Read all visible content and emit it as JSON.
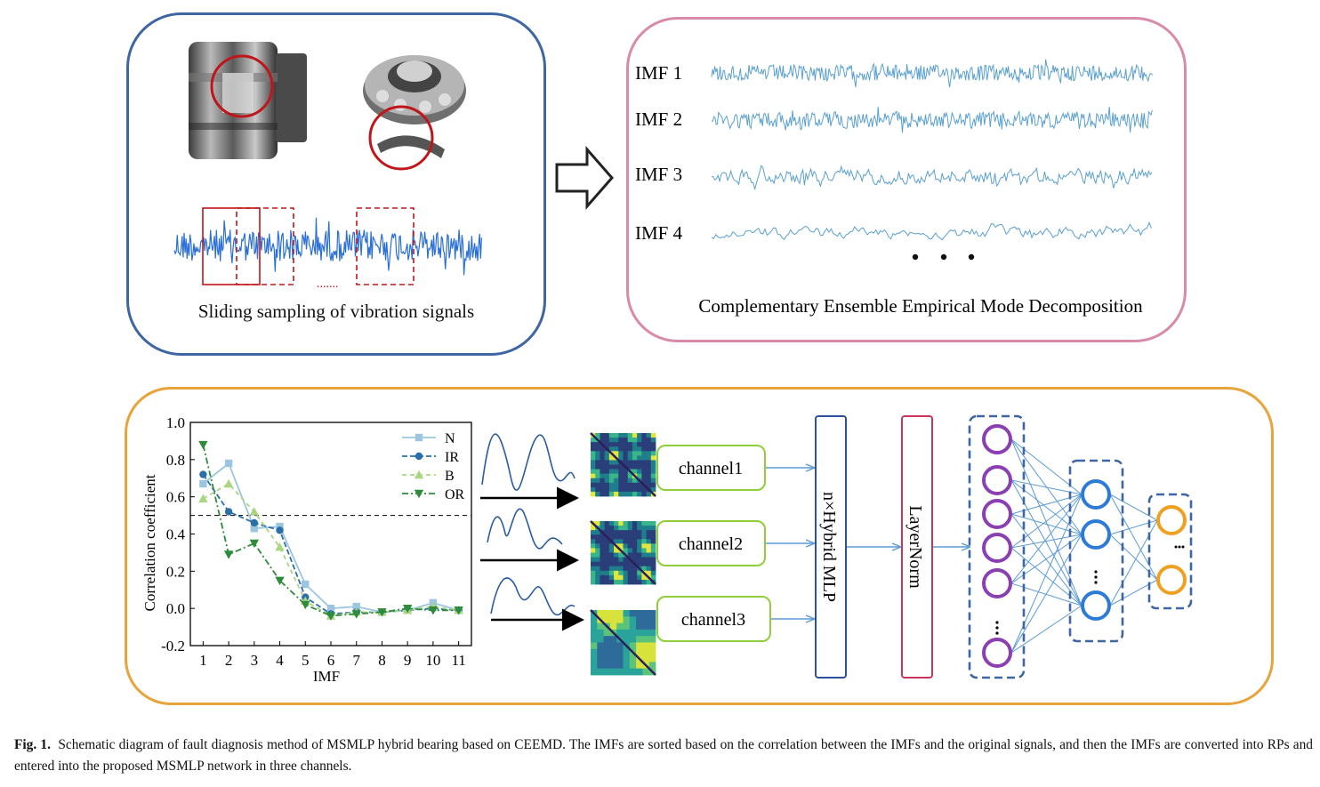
{
  "acquisition": {
    "caption": "Sliding sampling of vibration signals",
    "ellipsis": "......."
  },
  "ceemd": {
    "imf_labels": [
      "IMF 1",
      "IMF 2",
      "IMF 3",
      "IMF 4"
    ],
    "title": "Complementary Ensemble Empirical Mode Decomposition"
  },
  "chart_data": {
    "type": "line",
    "xlabel": "IMF",
    "ylabel": "Correlation coefficient",
    "categories": [
      1,
      2,
      3,
      4,
      5,
      6,
      7,
      8,
      9,
      10,
      11
    ],
    "xlim": [
      0.5,
      11.5
    ],
    "ylim": [
      -0.2,
      1.0
    ],
    "yticks": [
      "1.0",
      "0.8",
      "0.6",
      "0.4",
      "0.2",
      "0.0",
      "-0.2"
    ],
    "xticks": [
      "1",
      "2",
      "3",
      "4",
      "5",
      "6",
      "7",
      "8",
      "9",
      "10",
      "11"
    ],
    "threshold": 0.5,
    "grid": false,
    "legend_position": "top-right",
    "series": [
      {
        "name": "N",
        "color": "#9cc6e0",
        "marker": "square",
        "values": [
          0.67,
          0.78,
          0.43,
          0.44,
          0.13,
          0.0,
          0.01,
          -0.02,
          -0.01,
          0.03,
          -0.01
        ]
      },
      {
        "name": "IR",
        "color": "#2a6fa7",
        "marker": "circle",
        "values": [
          0.72,
          0.52,
          0.46,
          0.42,
          0.06,
          -0.03,
          -0.02,
          -0.02,
          -0.01,
          0.0,
          -0.01
        ]
      },
      {
        "name": "B",
        "color": "#a9d67f",
        "marker": "triangle-up",
        "values": [
          0.59,
          0.67,
          0.52,
          0.33,
          0.04,
          -0.04,
          -0.02,
          -0.02,
          -0.01,
          0.01,
          -0.01
        ]
      },
      {
        "name": "OR",
        "color": "#2e8b3a",
        "marker": "triangle-down",
        "values": [
          0.88,
          0.29,
          0.35,
          0.15,
          0.02,
          -0.04,
          -0.03,
          -0.02,
          0.0,
          -0.01,
          -0.01
        ]
      }
    ]
  },
  "network": {
    "channels": [
      "channel1",
      "channel2",
      "channel3"
    ],
    "hybrid_block": "n×Hybrid MLP",
    "layernorm": "LayerNorm"
  },
  "colors": {
    "signal_blue": "#2a6fd6",
    "imf_blue": "#5aa0cf",
    "arrow_blue": "#5b9bd5",
    "channel_green": "#8fce3a",
    "hybrid_blue": "#2e4f9e",
    "layernorm_red": "#c8365c",
    "node_purple": "#8b3fb0",
    "node_blue": "#2e7ad9",
    "node_orange": "#f0a020"
  },
  "figure_caption": {
    "label": "Fig. 1.",
    "text": "Schematic diagram of fault diagnosis method of MSMLP hybrid bearing based on CEEMD. The IMFs are sorted based on the correlation between the IMFs and the original signals, and then the IMFs are converted into RPs and entered into the proposed MSMLP network in three channels."
  }
}
